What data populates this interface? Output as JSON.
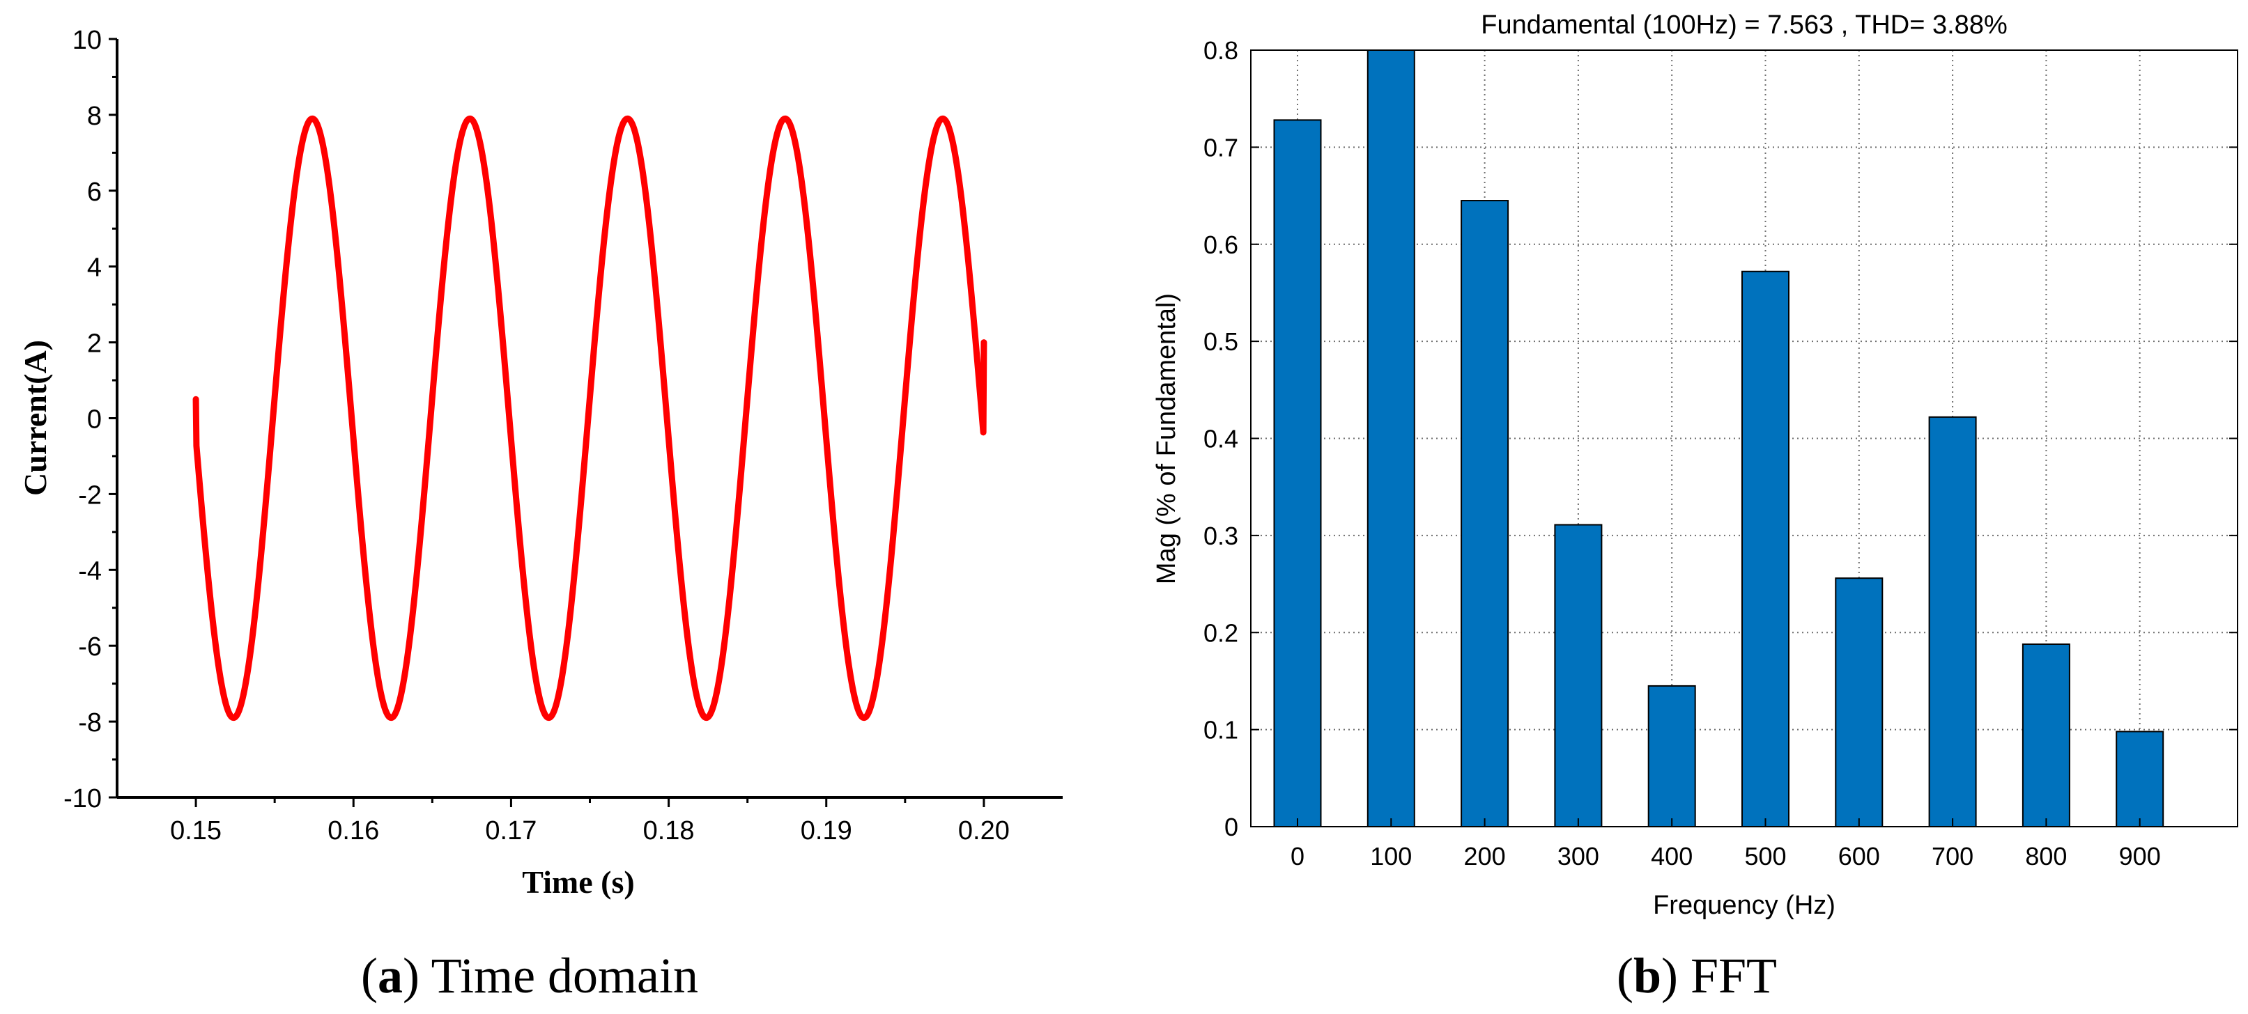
{
  "colors": {
    "signal": "#ff0000",
    "bar": "#0072bd",
    "axis": "#000000",
    "grid": "#6f6f6f"
  },
  "chart_data": [
    {
      "id": "a",
      "type": "line",
      "title": "",
      "xlabel": "Time (s)",
      "ylabel": "Current(A)",
      "xlim": [
        0.145,
        0.205
      ],
      "ylim": [
        -10,
        10
      ],
      "xticks": [
        "0.15",
        "0.16",
        "0.17",
        "0.18",
        "0.19",
        "0.20"
      ],
      "yticks": [
        "10",
        "8",
        "6",
        "4",
        "2",
        "0",
        "-2",
        "-4",
        "-6",
        "-8",
        "-10"
      ],
      "series": [
        {
          "name": "Current",
          "x_start": 0.15,
          "x_end": 0.2,
          "amplitude": 7.9,
          "frequency_hz": 100,
          "phase_deg": 184,
          "y_start": 0.5,
          "y_end": 2.0,
          "peaks_x": [
            0.1577,
            0.1677,
            0.1777,
            0.1877,
            0.1978
          ],
          "troughs_x": [
            0.1527,
            0.1627,
            0.1727,
            0.1827,
            0.1928
          ]
        }
      ],
      "grid": false
    },
    {
      "id": "b",
      "type": "bar",
      "title": "Fundamental (100Hz) = 7.563 , THD= 3.88%",
      "xlabel": "Frequency (Hz)",
      "ylabel": "Mag (% of Fundamental)",
      "categories": [
        "0",
        "100",
        "200",
        "300",
        "400",
        "500",
        "600",
        "700",
        "800",
        "900"
      ],
      "values": [
        0.728,
        0.8,
        0.645,
        0.311,
        0.145,
        0.572,
        0.256,
        0.422,
        0.188,
        0.098
      ],
      "ylim": [
        0,
        0.8
      ],
      "yticks": [
        "0",
        "0.1",
        "0.2",
        "0.3",
        "0.4",
        "0.5",
        "0.6",
        "0.7",
        "0.8"
      ],
      "grid": true
    }
  ],
  "captions": [
    {
      "letter": "a",
      "text": "Time domain"
    },
    {
      "letter": "b",
      "text": "FFT"
    }
  ]
}
